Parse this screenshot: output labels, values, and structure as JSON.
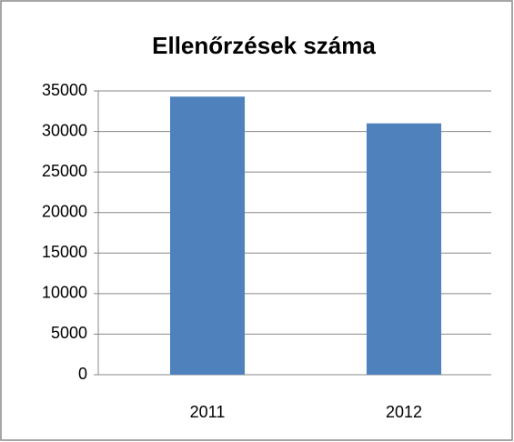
{
  "chart_data": {
    "type": "bar",
    "title": "Ellenőrzések száma",
    "categories": [
      "2011",
      "2012"
    ],
    "values": [
      34300,
      31000
    ],
    "color": "#4f81bd",
    "ylim": [
      0,
      35000
    ],
    "yticks": [
      0,
      5000,
      10000,
      15000,
      20000,
      25000,
      30000,
      35000
    ],
    "grid": true
  }
}
